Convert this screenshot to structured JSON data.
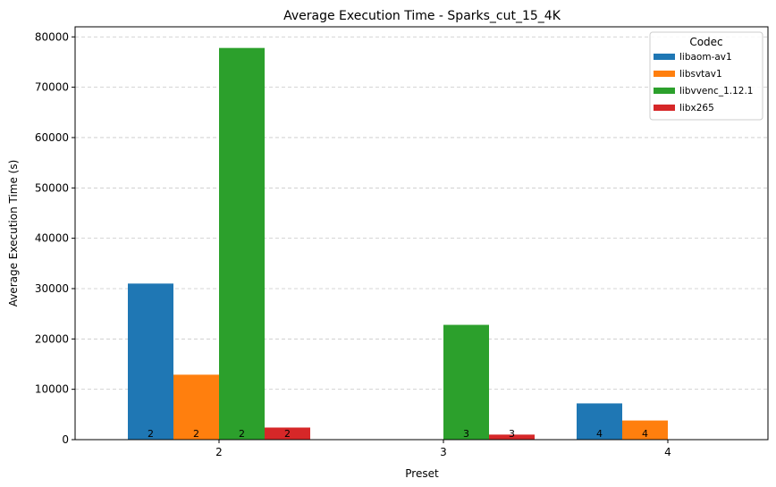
{
  "chart_data": {
    "type": "bar",
    "title": "Average Execution Time - Sparks_cut_15_4K",
    "xlabel": "Preset",
    "ylabel": "Average Execution Time (s)",
    "categories": [
      "2",
      "3",
      "4"
    ],
    "ylim": [
      0,
      82000
    ],
    "yticks": [
      0,
      10000,
      20000,
      30000,
      40000,
      50000,
      60000,
      70000,
      80000
    ],
    "grid": "y-dashed",
    "legend": {
      "title": "Codec",
      "placement": "top-right"
    },
    "series": [
      {
        "name": "libaom-av1",
        "color": "#1f77b4",
        "values": [
          31000,
          null,
          7200
        ],
        "labels": [
          "2",
          null,
          "4"
        ]
      },
      {
        "name": "libsvtav1",
        "color": "#ff7f0e",
        "values": [
          12900,
          null,
          3800
        ],
        "labels": [
          "2",
          null,
          "4"
        ]
      },
      {
        "name": "libvvenc_1.12.1",
        "color": "#2ca02c",
        "values": [
          77800,
          22800,
          null
        ],
        "labels": [
          "2",
          "3",
          null
        ]
      },
      {
        "name": "libx265",
        "color": "#d62728",
        "values": [
          2400,
          1000,
          null
        ],
        "labels": [
          "2",
          "3",
          null
        ]
      }
    ]
  }
}
